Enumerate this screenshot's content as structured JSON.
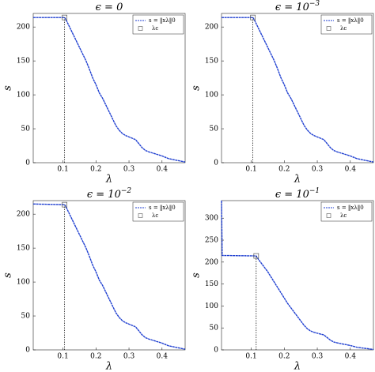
{
  "chart_data": [
    {
      "type": "line",
      "title": "ϵ = 0",
      "xlabel": "λ",
      "ylabel": "s",
      "x": [
        0.01,
        0.105,
        0.11,
        0.12,
        0.13,
        0.14,
        0.15,
        0.16,
        0.17,
        0.18,
        0.19,
        0.2,
        0.21,
        0.22,
        0.23,
        0.24,
        0.25,
        0.26,
        0.27,
        0.28,
        0.29,
        0.3,
        0.32,
        0.33,
        0.34,
        0.35,
        0.36,
        0.38,
        0.4,
        0.42,
        0.44,
        0.46,
        0.47
      ],
      "series": [
        {
          "name": "s = ‖xλ‖0",
          "color": "#1f3fd0",
          "values": [
            214,
            214,
            210,
            200,
            190,
            180,
            170,
            160,
            150,
            138,
            125,
            115,
            103,
            95,
            85,
            75,
            65,
            55,
            48,
            43,
            40,
            38,
            34,
            28,
            22,
            18,
            16,
            13,
            10,
            6,
            4,
            2,
            1
          ]
        }
      ],
      "lambda_c": {
        "name": "λc",
        "x": 0.105,
        "y": 214
      },
      "xlim": [
        0.01,
        0.47
      ],
      "ylim": [
        0,
        220
      ],
      "xticks": [
        0.1,
        0.2,
        0.3,
        0.4
      ],
      "yticks": [
        0,
        50,
        100,
        150,
        200
      ]
    },
    {
      "type": "line",
      "title": "ϵ = 10",
      "title_sup": "−3",
      "xlabel": "λ",
      "ylabel": "s",
      "x": [
        0.01,
        0.105,
        0.11,
        0.12,
        0.13,
        0.14,
        0.15,
        0.16,
        0.17,
        0.18,
        0.19,
        0.2,
        0.21,
        0.22,
        0.23,
        0.24,
        0.25,
        0.26,
        0.27,
        0.28,
        0.29,
        0.3,
        0.32,
        0.33,
        0.34,
        0.35,
        0.36,
        0.38,
        0.4,
        0.42,
        0.44,
        0.46,
        0.47
      ],
      "series": [
        {
          "name": "s = ‖xλ‖0",
          "color": "#1f3fd0",
          "values": [
            214,
            214,
            210,
            200,
            190,
            180,
            170,
            160,
            150,
            138,
            125,
            115,
            103,
            95,
            85,
            75,
            65,
            55,
            48,
            43,
            40,
            38,
            34,
            28,
            22,
            18,
            16,
            13,
            10,
            6,
            4,
            2,
            1
          ]
        }
      ],
      "lambda_c": {
        "name": "λc",
        "x": 0.105,
        "y": 214
      },
      "xlim": [
        0.01,
        0.47
      ],
      "ylim": [
        0,
        220
      ],
      "xticks": [
        0.1,
        0.2,
        0.3,
        0.4
      ],
      "yticks": [
        0,
        50,
        100,
        150,
        200
      ]
    },
    {
      "type": "line",
      "title": "ϵ = 10",
      "title_sup": "−2",
      "xlabel": "λ",
      "ylabel": "s",
      "x": [
        0.01,
        0.105,
        0.11,
        0.12,
        0.13,
        0.14,
        0.15,
        0.16,
        0.17,
        0.18,
        0.19,
        0.2,
        0.21,
        0.22,
        0.23,
        0.24,
        0.25,
        0.26,
        0.27,
        0.28,
        0.29,
        0.3,
        0.32,
        0.33,
        0.34,
        0.35,
        0.36,
        0.38,
        0.4,
        0.42,
        0.44,
        0.46,
        0.47
      ],
      "series": [
        {
          "name": "s = ‖xλ‖0",
          "color": "#1f3fd0",
          "values": [
            215,
            214,
            210,
            200,
            190,
            180,
            170,
            160,
            150,
            138,
            125,
            115,
            103,
            95,
            85,
            75,
            65,
            55,
            48,
            43,
            40,
            38,
            34,
            28,
            22,
            18,
            16,
            13,
            10,
            6,
            4,
            2,
            1
          ]
        }
      ],
      "lambda_c": {
        "name": "λc",
        "x": 0.105,
        "y": 214
      },
      "xlim": [
        0.01,
        0.47
      ],
      "ylim": [
        0,
        220
      ],
      "xticks": [
        0.1,
        0.2,
        0.3,
        0.4
      ],
      "yticks": [
        0,
        50,
        100,
        150,
        200
      ]
    },
    {
      "type": "line",
      "title": "ϵ = 10",
      "title_sup": "−1",
      "xlabel": "λ",
      "ylabel": "s",
      "x": [
        0.01,
        0.012,
        0.115,
        0.12,
        0.13,
        0.14,
        0.15,
        0.16,
        0.17,
        0.18,
        0.19,
        0.2,
        0.21,
        0.22,
        0.23,
        0.24,
        0.25,
        0.26,
        0.27,
        0.28,
        0.29,
        0.3,
        0.32,
        0.33,
        0.34,
        0.35,
        0.36,
        0.38,
        0.4,
        0.42,
        0.44,
        0.46,
        0.47
      ],
      "series": [
        {
          "name": "s = ‖xλ‖0",
          "color": "#1f3fd0",
          "values": [
            340,
            215,
            214,
            208,
            198,
            188,
            178,
            166,
            154,
            142,
            130,
            118,
            106,
            96,
            86,
            76,
            66,
            56,
            48,
            43,
            40,
            38,
            34,
            28,
            22,
            18,
            16,
            13,
            10,
            6,
            4,
            2,
            1
          ]
        }
      ],
      "lambda_c": {
        "name": "λc",
        "x": 0.115,
        "y": 214
      },
      "xlim": [
        0.01,
        0.47
      ],
      "ylim": [
        0,
        340
      ],
      "xticks": [
        0.1,
        0.2,
        0.3,
        0.4
      ],
      "yticks": [
        0,
        50,
        100,
        150,
        200,
        250,
        300
      ]
    }
  ]
}
